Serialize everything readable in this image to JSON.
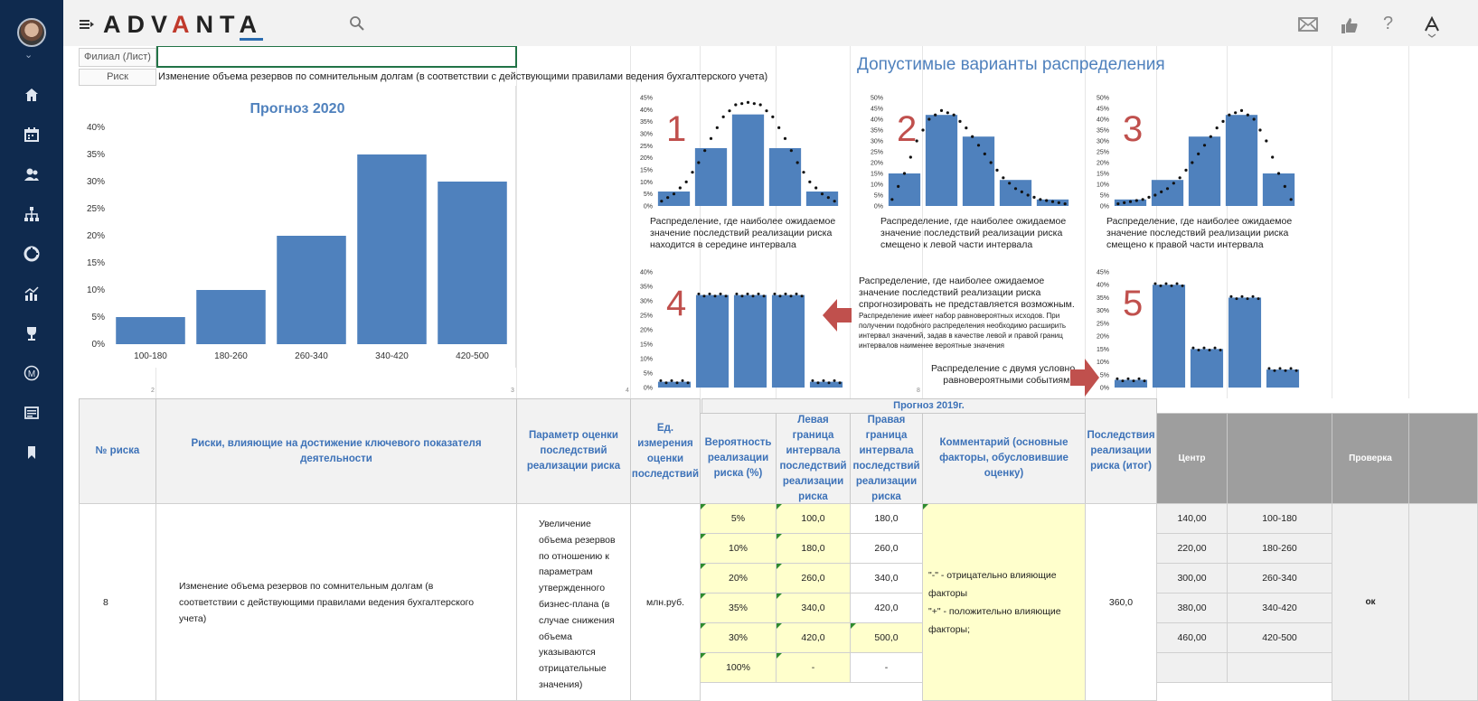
{
  "app": {
    "logo": "ADVANTA"
  },
  "sidebar": {
    "items": [
      {
        "name": "home-icon"
      },
      {
        "name": "calendar-icon"
      },
      {
        "name": "users-icon"
      },
      {
        "name": "org-structure-icon"
      },
      {
        "name": "pie-chart-icon"
      },
      {
        "name": "analytics-icon"
      },
      {
        "name": "trophy-icon"
      },
      {
        "name": "m-circle-icon"
      },
      {
        "name": "news-icon"
      },
      {
        "name": "bookmark-icon"
      }
    ]
  },
  "sheet": {
    "filial_label": "Филиал (Лист)",
    "filial_value": "",
    "risk_label": "Риск",
    "risk_value": "Изменение объема резервов по сомнительным долгам (в соответствии с действующими правилами ведения бухгалтерского учета)",
    "variants_title": "Допустимые варианты распределения",
    "col_numbers": [
      "2",
      "3",
      "4",
      "8"
    ]
  },
  "chart_data": [
    {
      "type": "bar",
      "title": "Прогноз 2020",
      "categories": [
        "100-180",
        "180-260",
        "260-340",
        "340-420",
        "420-500"
      ],
      "values": [
        5,
        10,
        20,
        35,
        30
      ],
      "yticks": [
        "0%",
        "5%",
        "10%",
        "15%",
        "20%",
        "25%",
        "30%",
        "35%",
        "40%"
      ],
      "ylim": [
        0,
        40
      ],
      "color": "#4f81bd"
    },
    {
      "type": "bar",
      "label": "1",
      "values": [
        6,
        24,
        38,
        24,
        6
      ],
      "ylim": [
        0,
        45
      ],
      "yticks": [
        "0%",
        "5%",
        "10%",
        "15%",
        "20%",
        "25%",
        "30%",
        "35%",
        "40%",
        "45%"
      ],
      "curve": [
        2,
        5,
        10,
        18,
        28,
        37,
        42,
        43,
        42,
        37,
        28,
        18,
        10,
        5,
        2
      ],
      "caption": [
        "Распределение, где наиболее ожидаемое",
        "значение последствий реализации риска",
        "находится в середине интервала"
      ]
    },
    {
      "type": "bar",
      "label": "2",
      "values": [
        15,
        42,
        32,
        12,
        3
      ],
      "ylim": [
        0,
        50
      ],
      "yticks": [
        "0%",
        "5%",
        "10%",
        "15%",
        "20%",
        "25%",
        "30%",
        "35%",
        "40%",
        "45%",
        "50%"
      ],
      "curve": [
        3,
        15,
        30,
        40,
        44,
        42,
        36,
        28,
        20,
        13,
        8,
        5,
        3,
        2,
        1
      ],
      "caption": [
        "Распределение, где наиболее ожидаемое",
        "значение последствий реализации риска",
        "смещено к левой части интервала"
      ]
    },
    {
      "type": "bar",
      "label": "3",
      "values": [
        3,
        12,
        32,
        42,
        15
      ],
      "ylim": [
        0,
        50
      ],
      "yticks": [
        "0%",
        "5%",
        "10%",
        "15%",
        "20%",
        "25%",
        "30%",
        "35%",
        "40%",
        "45%",
        "50%"
      ],
      "curve": [
        1,
        2,
        3,
        5,
        8,
        13,
        20,
        28,
        36,
        42,
        44,
        40,
        30,
        15,
        3
      ],
      "caption": [
        "Распределение, где наиболее ожидаемое",
        "значение последствий реализации риска",
        "смещено к правой  части интервала"
      ]
    },
    {
      "type": "bar",
      "label": "4",
      "values": [
        2,
        32,
        32,
        32,
        2
      ],
      "ylim": [
        0,
        40
      ],
      "yticks": [
        "0%",
        "5%",
        "10%",
        "15%",
        "20%",
        "25%",
        "30%",
        "35%",
        "40%"
      ],
      "caption": [
        "Распределение, где наиболее ожидаемое",
        "значение последствий реализации риска",
        "спрогнозировать не представляется возможным."
      ],
      "note": [
        "Распределение имеет набор равновероятных исходов. При",
        "получении подобного распределения необходимо расширить",
        "интервал значений, задав в качестве левой и правой границ",
        "интервалов наименее вероятные значения"
      ]
    },
    {
      "type": "bar",
      "label": "5",
      "values": [
        3,
        40,
        15,
        35,
        7
      ],
      "ylim": [
        0,
        45
      ],
      "yticks": [
        "0%",
        "5%",
        "10%",
        "15%",
        "20%",
        "25%",
        "30%",
        "35%",
        "40%",
        "45%"
      ],
      "caption": [
        "Распределение с двумя условно",
        "равновероятными событиями"
      ]
    }
  ],
  "table": {
    "group_header": "Прогноз 2019г.",
    "headers": {
      "num": "№ риска",
      "risks": "Риски, влияющие на достижение ключевого показателя деятельности",
      "param": "Параметр оценки последствий реализации риска",
      "unit": "Ед. измерения оценки последствий",
      "prob": "Вероятность реализации риска (%)",
      "left": "Левая граница интервала последствий реализации риска",
      "right": "Правая граница интервала последствий реализации риска",
      "comment": "Комментарий (основные факторы, обусловившие оценку)",
      "result": "Последствия реализации риска (итог)",
      "center": "Центр",
      "blank": "",
      "check": "Проверка"
    },
    "row": {
      "num": "8",
      "risk": "Изменение объема резервов по сомнительным долгам (в соответствии с действующими правилами ведения бухгалтерского учета)",
      "param": "Увеличение объема резервов по отношению к параметрам утвержденного бизнес-плана (в случае снижения объема указываются отрицательные значения)",
      "unit": "млн.руб.",
      "comment_1": "\"-\" - отрицательно влияющие факторы",
      "comment_2": "\"+\" - положительно влияющие факторы;",
      "result": "360,0",
      "check": "ок"
    },
    "subrows": [
      {
        "prob": "5%",
        "left": "100,0",
        "right": "180,0",
        "center": "140,00",
        "range": "100-180"
      },
      {
        "prob": "10%",
        "left": "180,0",
        "right": "260,0",
        "center": "220,00",
        "range": "180-260"
      },
      {
        "prob": "20%",
        "left": "260,0",
        "right": "340,0",
        "center": "300,00",
        "range": "260-340"
      },
      {
        "prob": "35%",
        "left": "340,0",
        "right": "420,0",
        "center": "380,00",
        "range": "340-420"
      },
      {
        "prob": "30%",
        "left": "420,0",
        "right": "500,0",
        "center": "460,00",
        "range": "420-500"
      },
      {
        "prob": "100%",
        "left": "-",
        "right": "-",
        "center": "",
        "range": ""
      }
    ]
  }
}
